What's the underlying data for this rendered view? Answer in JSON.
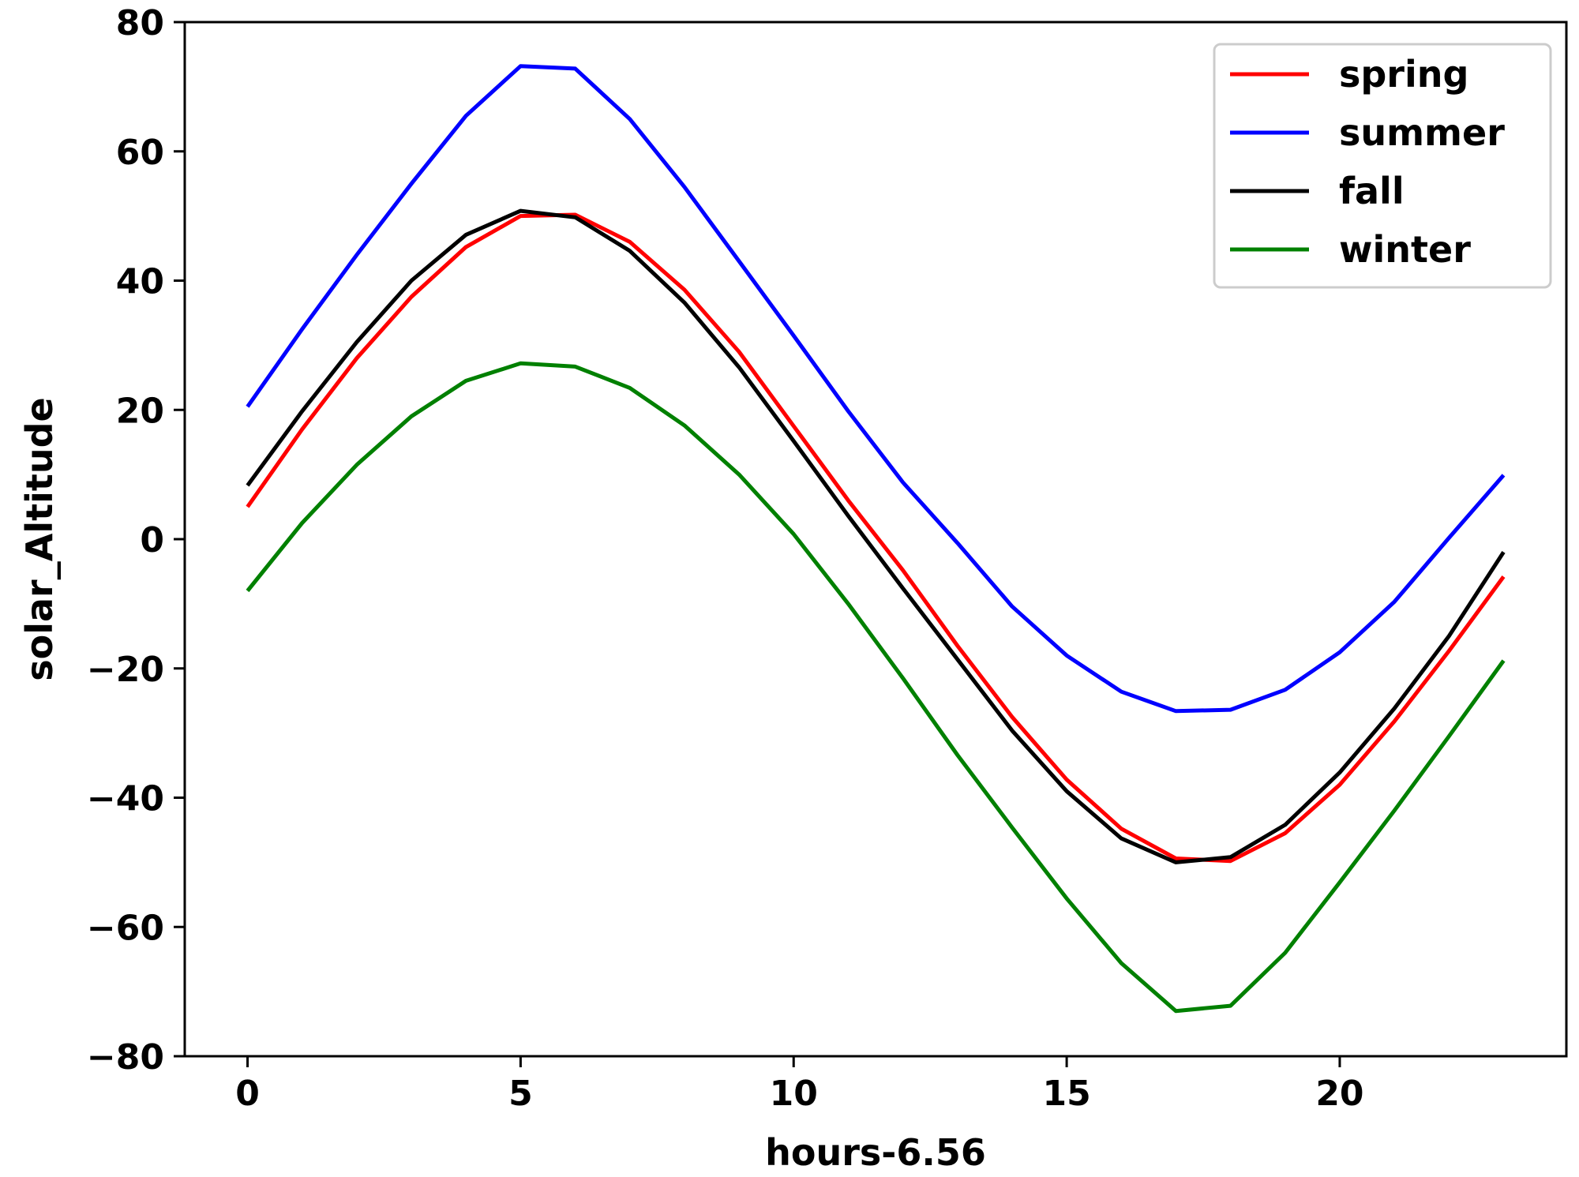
{
  "chart_data": {
    "type": "line",
    "title": "",
    "xlabel": "hours-6.56",
    "ylabel": "solar_Altitude",
    "xlim": [
      -1.15,
      24.15
    ],
    "ylim": [
      -80,
      80
    ],
    "xticks": [
      0,
      5,
      10,
      15,
      20
    ],
    "yticks": [
      -80,
      -60,
      -40,
      -20,
      0,
      20,
      40,
      60,
      80
    ],
    "xtick_labels": [
      "0",
      "5",
      "10",
      "15",
      "20"
    ],
    "ytick_labels": [
      "−80",
      "−60",
      "−40",
      "−20",
      "0",
      "20",
      "40",
      "60",
      "80"
    ],
    "grid": false,
    "legend_position": "top-right",
    "x": [
      0,
      1,
      2,
      3,
      4,
      5,
      6,
      7,
      8,
      9,
      10,
      11,
      12,
      13,
      14,
      15,
      16,
      17,
      18,
      19,
      20,
      21,
      22,
      23
    ],
    "series": [
      {
        "name": "spring",
        "color": "#ff0000",
        "values": [
          5,
          17,
          28,
          37.5,
          45.2,
          50,
          50.2,
          46,
          38.6,
          29,
          17.5,
          6,
          -4.8,
          -16.5,
          -27.5,
          -37.2,
          -44.8,
          -49.4,
          -49.8,
          -45.5,
          -38,
          -28.2,
          -17.3,
          -5.8
        ]
      },
      {
        "name": "summer",
        "color": "#0000ff",
        "values": [
          20.5,
          32.5,
          44,
          55,
          65.5,
          73.2,
          72.8,
          65,
          54.5,
          43,
          31.5,
          19.8,
          8.8,
          -0.6,
          -10.4,
          -18,
          -23.6,
          -26.6,
          -26.4,
          -23.3,
          -17.5,
          -9.7,
          0.2,
          9.9
        ]
      },
      {
        "name": "fall",
        "color": "#000000",
        "values": [
          8.3,
          19.8,
          30.5,
          40,
          47.1,
          50.8,
          49.8,
          44.6,
          36.6,
          26.6,
          15.2,
          3.6,
          -7.6,
          -18.6,
          -29.6,
          -39,
          -46.3,
          -50,
          -49.2,
          -44.2,
          -36.1,
          -26.2,
          -15,
          -2
        ]
      },
      {
        "name": "winter",
        "color": "#008000",
        "values": [
          -8,
          2.5,
          11.5,
          19,
          24.5,
          27.2,
          26.7,
          23.4,
          17.6,
          10,
          0.8,
          -10,
          -21.5,
          -33.4,
          -44.6,
          -55.6,
          -65.6,
          -73,
          -72.2,
          -64,
          -53.1,
          -42,
          -30.5,
          -18.8
        ]
      }
    ]
  }
}
